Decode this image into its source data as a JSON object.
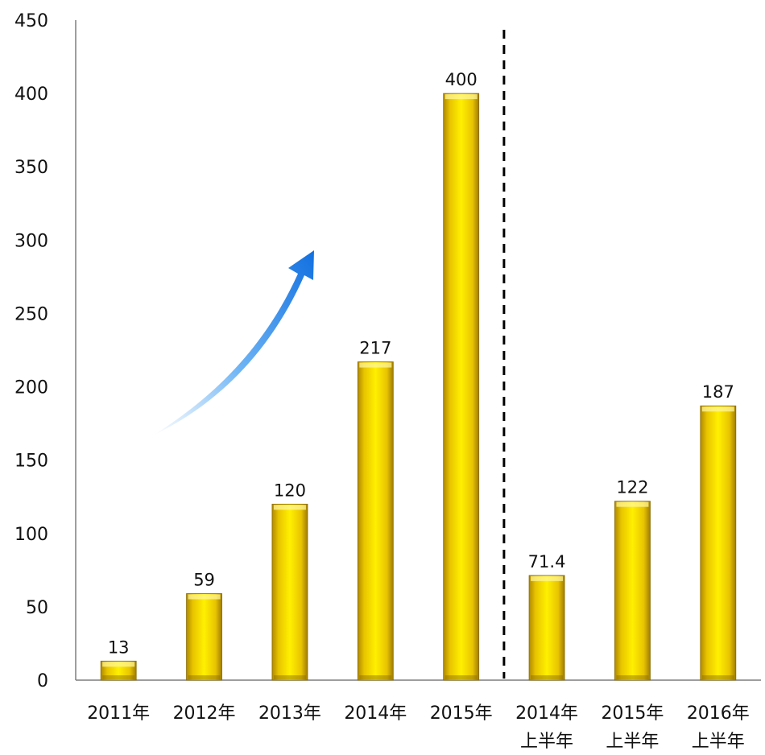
{
  "chart_data": {
    "type": "bar",
    "title": "",
    "xlabel": "",
    "ylabel": "",
    "categories": [
      [
        "2011年"
      ],
      [
        "2012年"
      ],
      [
        "2013年"
      ],
      [
        "2014年"
      ],
      [
        "2015年"
      ],
      [
        "2014年",
        "上半年"
      ],
      [
        "2015年",
        "上半年"
      ],
      [
        "2016年",
        "上半年"
      ]
    ],
    "values": [
      13,
      59,
      120,
      217,
      400,
      71.4,
      122,
      187
    ],
    "value_labels": [
      "13",
      "59",
      "120",
      "217",
      "400",
      "71.4",
      "122",
      "187"
    ],
    "ylim": [
      0,
      450
    ],
    "yticks": [
      0,
      50,
      100,
      150,
      200,
      250,
      300,
      350,
      400,
      450
    ],
    "grid": false,
    "legend": "none",
    "divider_after_index": 4,
    "bar_color": "#FFE600",
    "bar_shade_color": "#C9A400",
    "trend_arrow_color": "#1E7FE8"
  }
}
